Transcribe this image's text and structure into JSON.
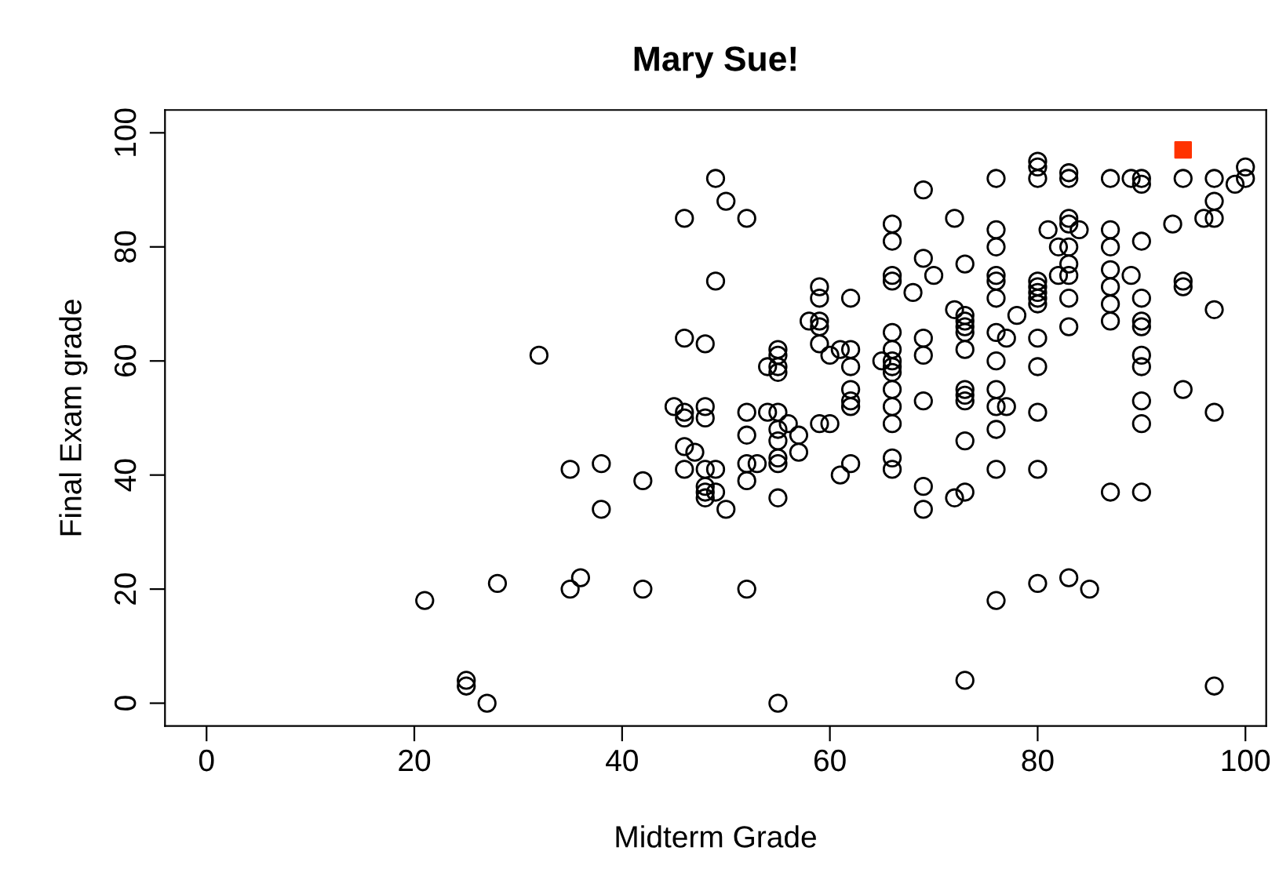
{
  "chart_data": {
    "type": "scatter",
    "title": "Mary Sue!",
    "xlabel": "Midterm Grade",
    "ylabel": "Final Exam grade",
    "xlim": [
      -4,
      102
    ],
    "ylim": [
      -4,
      104
    ],
    "xticks": [
      0,
      20,
      40,
      60,
      80,
      100
    ],
    "yticks": [
      0,
      20,
      40,
      60,
      80,
      100
    ],
    "grid": false,
    "series": [
      {
        "color": "#000000",
        "marker": "circle",
        "x": [
          21,
          25,
          25,
          27,
          28,
          32,
          35,
          35,
          36,
          38,
          38,
          42,
          42,
          45,
          46,
          46,
          46,
          46,
          46,
          46,
          47,
          48,
          48,
          48,
          48,
          48,
          48,
          48,
          49,
          49,
          49,
          49,
          50,
          50,
          52,
          52,
          52,
          52,
          52,
          52,
          53,
          54,
          54,
          55,
          55,
          55,
          55,
          55,
          55,
          55,
          55,
          55,
          55,
          55,
          56,
          57,
          57,
          58,
          59,
          59,
          59,
          59,
          59,
          59,
          60,
          60,
          61,
          61,
          62,
          62,
          62,
          62,
          62,
          62,
          62,
          65,
          66,
          66,
          66,
          66,
          66,
          66,
          66,
          66,
          66,
          66,
          66,
          66,
          66,
          66,
          68,
          69,
          69,
          69,
          69,
          69,
          69,
          69,
          70,
          72,
          72,
          72,
          73,
          73,
          73,
          73,
          73,
          73,
          73,
          73,
          73,
          73,
          73,
          73,
          76,
          76,
          76,
          76,
          76,
          76,
          76,
          76,
          76,
          76,
          76,
          76,
          76,
          77,
          77,
          78,
          80,
          80,
          80,
          80,
          80,
          80,
          80,
          80,
          80,
          80,
          80,
          80,
          80,
          81,
          82,
          82,
          83,
          83,
          83,
          83,
          83,
          83,
          83,
          83,
          83,
          83,
          84,
          85,
          87,
          87,
          87,
          87,
          87,
          87,
          87,
          87,
          89,
          89,
          90,
          90,
          90,
          90,
          90,
          90,
          90,
          90,
          90,
          90,
          90,
          93,
          94,
          94,
          94,
          94,
          96,
          97,
          97,
          97,
          97,
          97,
          97,
          99,
          100,
          100
        ],
        "values": [
          18,
          4,
          3,
          0,
          21,
          61,
          41,
          20,
          22,
          42,
          34,
          39,
          20,
          52,
          85,
          64,
          51,
          50,
          45,
          41,
          44,
          63,
          52,
          50,
          41,
          38,
          37,
          36,
          92,
          74,
          41,
          37,
          88,
          34,
          85,
          51,
          47,
          42,
          39,
          20,
          42,
          59,
          51,
          62,
          61,
          59,
          58,
          51,
          48,
          46,
          43,
          42,
          36,
          0,
          49,
          47,
          44,
          67,
          73,
          71,
          67,
          66,
          63,
          49,
          61,
          49,
          62,
          40,
          71,
          62,
          59,
          55,
          53,
          52,
          42,
          60,
          84,
          81,
          75,
          74,
          65,
          62,
          60,
          59,
          58,
          55,
          52,
          49,
          43,
          41,
          72,
          90,
          78,
          64,
          61,
          53,
          38,
          34,
          75,
          85,
          69,
          36,
          77,
          68,
          67,
          66,
          65,
          62,
          55,
          54,
          53,
          46,
          37,
          4,
          92,
          83,
          80,
          75,
          74,
          71,
          65,
          60,
          55,
          52,
          48,
          41,
          18,
          64,
          52,
          68,
          95,
          94,
          92,
          74,
          73,
          72,
          71,
          70,
          64,
          59,
          51,
          41,
          21,
          83,
          80,
          75,
          93,
          92,
          85,
          84,
          80,
          77,
          75,
          71,
          66,
          22,
          83,
          20,
          92,
          83,
          80,
          76,
          73,
          70,
          67,
          37,
          92,
          75,
          92,
          91,
          81,
          71,
          67,
          66,
          61,
          59,
          53,
          49,
          37,
          84,
          92,
          74,
          73,
          55,
          85,
          92,
          88,
          85,
          69,
          51,
          3,
          91,
          94,
          92
        ]
      },
      {
        "color": "#ff3300",
        "marker": "square",
        "x": [
          94
        ],
        "values": [
          97
        ]
      }
    ]
  }
}
